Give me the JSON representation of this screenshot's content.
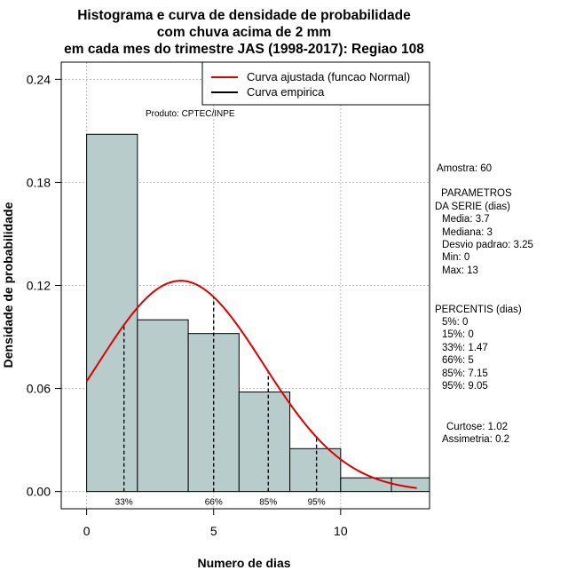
{
  "chart_data": {
    "type": "bar",
    "title": [
      "Histograma e curva de densidade de probabilidade",
      "com chuva acima de 2 mm",
      "em cada mes do trimestre JAS (1998-2017): Regiao 108"
    ],
    "xlabel": "Numero de dias",
    "ylabel": "Densidade de probabilidade",
    "xlim": [
      -1,
      13.5
    ],
    "ylim": [
      -0.01,
      0.25
    ],
    "xticks": [
      0,
      5,
      10
    ],
    "xtick_labels": [
      "0",
      "5",
      "10"
    ],
    "yticks": [
      0.0,
      0.06,
      0.12,
      0.18,
      0.24
    ],
    "ytick_labels": [
      "0.00",
      "0.06",
      "0.12",
      "0.18",
      "0.24"
    ],
    "grid": true,
    "bins": [
      {
        "from": 0,
        "to": 2,
        "density": 0.208
      },
      {
        "from": 2,
        "to": 4,
        "density": 0.1
      },
      {
        "from": 4,
        "to": 6,
        "density": 0.092
      },
      {
        "from": 6,
        "to": 8,
        "density": 0.058
      },
      {
        "from": 8,
        "to": 10,
        "density": 0.025
      },
      {
        "from": 10,
        "to": 12,
        "density": 0.008
      },
      {
        "from": 12,
        "to": 14,
        "density": 0.008
      }
    ],
    "normal_curve": {
      "mean": 3.7,
      "sd": 3.25,
      "x_from": 0,
      "x_to": 13,
      "color": "#dd0000"
    },
    "bar_color": "#b7cccb",
    "percentile_lines": [
      {
        "label": "33%",
        "x": 1.47
      },
      {
        "label": "66%",
        "x": 5
      },
      {
        "label": "85%",
        "x": 7.15
      },
      {
        "label": "95%",
        "x": 9.05
      }
    ],
    "legend": {
      "position": "top-right",
      "entries": [
        {
          "label": "Curva ajustada (funcao Normal)",
          "color": "#dd0000"
        },
        {
          "label": "Curva empirica",
          "color": "#000000"
        }
      ]
    },
    "annotation": "Produto: CPTEC/INPE"
  },
  "side_stats": {
    "amostra": "Amostra: 60",
    "param_header_1": "PARAMETROS",
    "param_header_2": "DA SERIE (dias)",
    "media": "Media: 3.7",
    "mediana": "Mediana: 3",
    "desvio": "Desvio padrao: 3.25",
    "min": "Min: 0",
    "max": "Max: 13",
    "percentis_header": "PERCENTIS (dias)",
    "p5": "5%: 0",
    "p15": "15%: 0",
    "p33": "33%: 1.47",
    "p66": "66%: 5",
    "p85": "85%: 7.15",
    "p95": "95%: 9.05",
    "curtose": "Curtose: 1.02",
    "assimetria": "Assimetria: 0.2"
  }
}
